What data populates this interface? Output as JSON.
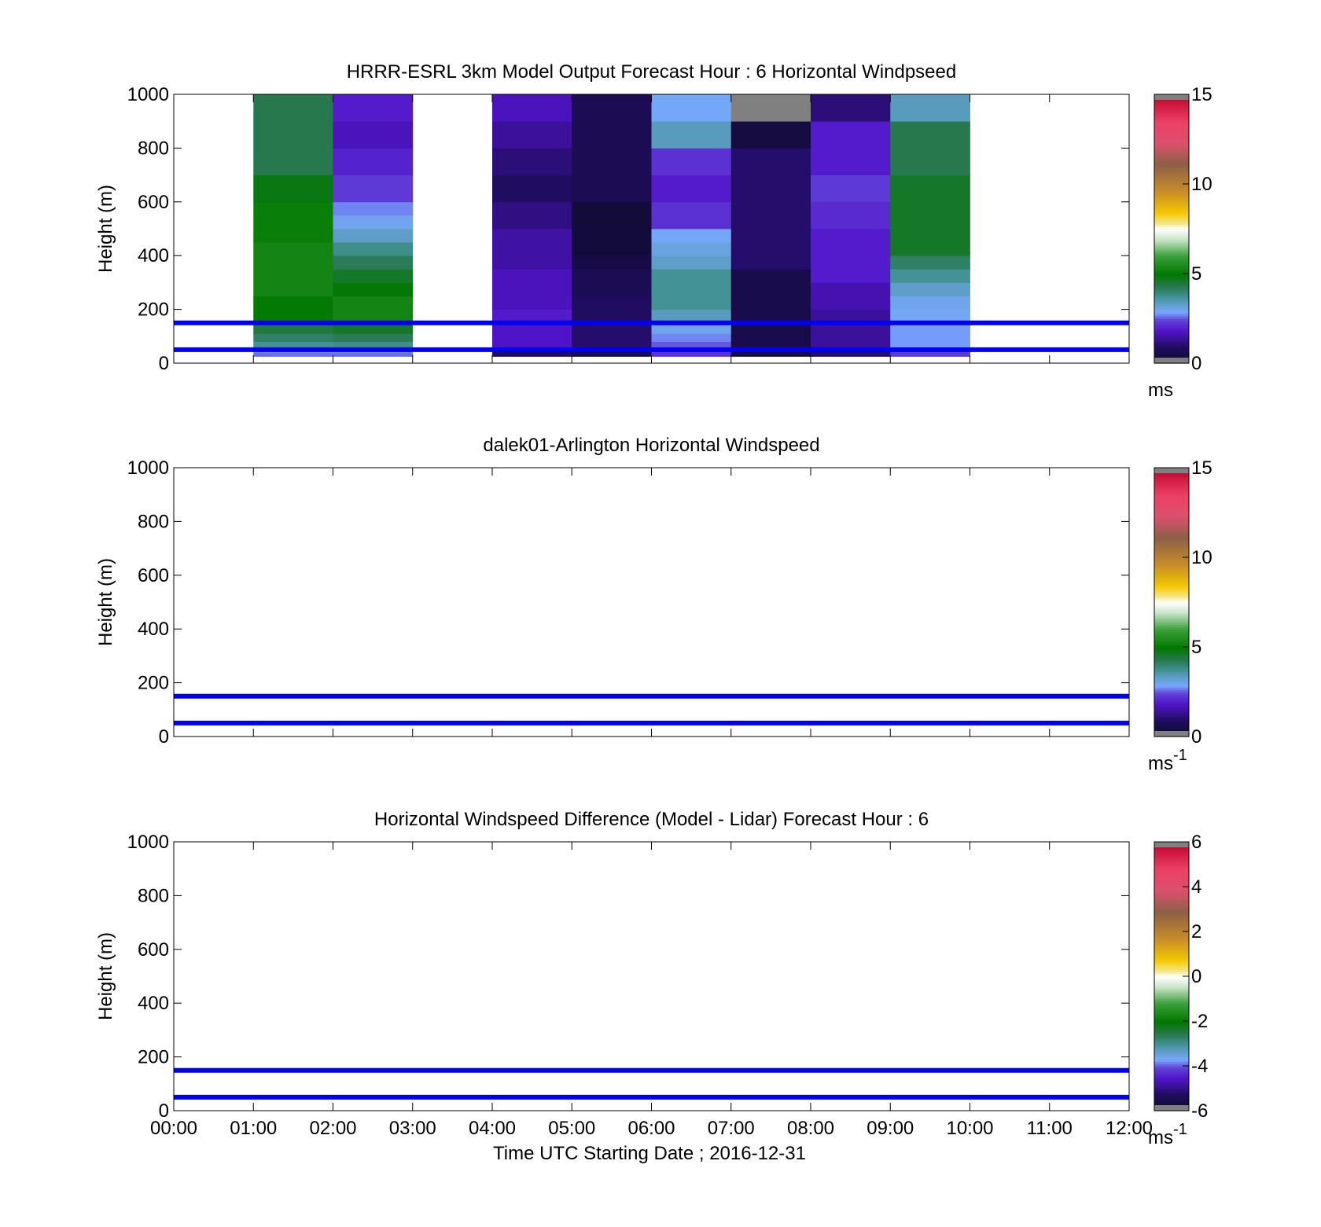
{
  "chart_data": [
    {
      "type": "heatmap",
      "title": "HRRR-ESRL 3km Model Output   Forecast Hour : 6 Horizontal Windpseed",
      "xlabel": "",
      "ylabel": "Height (m)",
      "xlim": [
        0,
        12
      ],
      "ylim": [
        0,
        1000
      ],
      "x_ticks": [
        "00:00",
        "01:00",
        "02:00",
        "03:00",
        "04:00",
        "05:00",
        "06:00",
        "07:00",
        "08:00",
        "09:00",
        "10:00",
        "11:00",
        "12:00"
      ],
      "y_ticks": [
        0,
        200,
        400,
        600,
        800,
        1000
      ],
      "reference_lines_m": [
        50,
        150
      ],
      "colorbar": {
        "min": 0,
        "max": 15,
        "ticks": [
          0,
          5,
          10,
          15
        ],
        "unit": "ms",
        "unit_sup": ""
      },
      "columns": [
        {
          "x0": 1,
          "x1": 2,
          "cells": [
            {
              "y0": 25,
              "y1": 40,
              "v": 2.6
            },
            {
              "y0": 40,
              "y1": 60,
              "v": 3.2
            },
            {
              "y0": 60,
              "y1": 80,
              "v": 3.7
            },
            {
              "y0": 80,
              "y1": 110,
              "v": 4.1
            },
            {
              "y0": 110,
              "y1": 150,
              "v": 4.4
            },
            {
              "y0": 150,
              "y1": 250,
              "v": 5.0
            },
            {
              "y0": 250,
              "y1": 450,
              "v": 5.3
            },
            {
              "y0": 450,
              "y1": 600,
              "v": 5.1
            },
            {
              "y0": 600,
              "y1": 700,
              "v": 4.8
            },
            {
              "y0": 700,
              "y1": 1000,
              "v": 4.3
            }
          ]
        },
        {
          "x0": 2,
          "x1": 3,
          "cells": [
            {
              "y0": 25,
              "y1": 40,
              "v": 2.6
            },
            {
              "y0": 40,
              "y1": 60,
              "v": 3.3
            },
            {
              "y0": 60,
              "y1": 80,
              "v": 3.8
            },
            {
              "y0": 80,
              "y1": 110,
              "v": 4.2
            },
            {
              "y0": 110,
              "y1": 150,
              "v": 4.6
            },
            {
              "y0": 150,
              "y1": 250,
              "v": 5.3
            },
            {
              "y0": 250,
              "y1": 300,
              "v": 4.9
            },
            {
              "y0": 300,
              "y1": 350,
              "v": 4.6
            },
            {
              "y0": 350,
              "y1": 400,
              "v": 4.2
            },
            {
              "y0": 400,
              "y1": 450,
              "v": 3.8
            },
            {
              "y0": 450,
              "y1": 500,
              "v": 3.3
            },
            {
              "y0": 500,
              "y1": 550,
              "v": 3.0
            },
            {
              "y0": 550,
              "y1": 600,
              "v": 2.7
            },
            {
              "y0": 600,
              "y1": 700,
              "v": 2.3
            },
            {
              "y0": 700,
              "y1": 800,
              "v": 2.0
            },
            {
              "y0": 800,
              "y1": 900,
              "v": 1.7
            },
            {
              "y0": 900,
              "y1": 1000,
              "v": 1.9
            }
          ]
        },
        {
          "x0": 4,
          "x1": 5,
          "cells": [
            {
              "y0": 25,
              "y1": 50,
              "v": 0.9
            },
            {
              "y0": 50,
              "y1": 150,
              "v": 1.8
            },
            {
              "y0": 150,
              "y1": 200,
              "v": 1.9
            },
            {
              "y0": 200,
              "y1": 350,
              "v": 1.7
            },
            {
              "y0": 350,
              "y1": 500,
              "v": 1.5
            },
            {
              "y0": 500,
              "y1": 600,
              "v": 1.2
            },
            {
              "y0": 600,
              "y1": 700,
              "v": 0.9
            },
            {
              "y0": 700,
              "y1": 800,
              "v": 1.1
            },
            {
              "y0": 800,
              "y1": 900,
              "v": 1.4
            },
            {
              "y0": 900,
              "y1": 1000,
              "v": 1.7
            }
          ]
        },
        {
          "x0": 5,
          "x1": 6,
          "cells": [
            {
              "y0": 25,
              "y1": 50,
              "v": 0.6
            },
            {
              "y0": 50,
              "y1": 150,
              "v": 1.0
            },
            {
              "y0": 150,
              "y1": 250,
              "v": 0.9
            },
            {
              "y0": 250,
              "y1": 350,
              "v": 0.7
            },
            {
              "y0": 350,
              "y1": 400,
              "v": 0.5
            },
            {
              "y0": 400,
              "y1": 600,
              "v": 0.3
            },
            {
              "y0": 600,
              "y1": 1000,
              "v": 0.7
            }
          ]
        },
        {
          "x0": 6,
          "x1": 7,
          "cells": [
            {
              "y0": 25,
              "y1": 50,
              "v": 2.2
            },
            {
              "y0": 50,
              "y1": 80,
              "v": 2.5
            },
            {
              "y0": 80,
              "y1": 110,
              "v": 2.7
            },
            {
              "y0": 110,
              "y1": 150,
              "v": 3.0
            },
            {
              "y0": 150,
              "y1": 200,
              "v": 3.4
            },
            {
              "y0": 200,
              "y1": 350,
              "v": 3.7
            },
            {
              "y0": 350,
              "y1": 400,
              "v": 3.3
            },
            {
              "y0": 400,
              "y1": 450,
              "v": 3.1
            },
            {
              "y0": 450,
              "y1": 500,
              "v": 2.9
            },
            {
              "y0": 500,
              "y1": 600,
              "v": 2.2
            },
            {
              "y0": 600,
              "y1": 700,
              "v": 1.9
            },
            {
              "y0": 700,
              "y1": 800,
              "v": 2.2
            },
            {
              "y0": 800,
              "y1": 900,
              "v": 3.4
            },
            {
              "y0": 900,
              "y1": 1000,
              "v": 2.9
            }
          ]
        },
        {
          "x0": 7,
          "x1": 8,
          "cells": [
            {
              "y0": 25,
              "y1": 50,
              "v": 0.4
            },
            {
              "y0": 50,
              "y1": 350,
              "v": 0.6
            },
            {
              "y0": 350,
              "y1": 800,
              "v": 1.0
            },
            {
              "y0": 800,
              "y1": 900,
              "v": 0.4
            },
            {
              "y0": 900,
              "y1": 1000,
              "v": 16
            }
          ]
        },
        {
          "x0": 8,
          "x1": 9,
          "cells": [
            {
              "y0": 25,
              "y1": 50,
              "v": 1.0
            },
            {
              "y0": 50,
              "y1": 200,
              "v": 1.4
            },
            {
              "y0": 200,
              "y1": 300,
              "v": 1.6
            },
            {
              "y0": 300,
              "y1": 500,
              "v": 1.9
            },
            {
              "y0": 500,
              "y1": 600,
              "v": 2.1
            },
            {
              "y0": 600,
              "y1": 700,
              "v": 2.3
            },
            {
              "y0": 700,
              "y1": 900,
              "v": 1.9
            },
            {
              "y0": 900,
              "y1": 1000,
              "v": 1.1
            }
          ]
        },
        {
          "x0": 9,
          "x1": 10,
          "cells": [
            {
              "y0": 25,
              "y1": 50,
              "v": 2.3
            },
            {
              "y0": 50,
              "y1": 150,
              "v": 2.8
            },
            {
              "y0": 150,
              "y1": 200,
              "v": 2.9
            },
            {
              "y0": 200,
              "y1": 250,
              "v": 3.0
            },
            {
              "y0": 250,
              "y1": 300,
              "v": 3.3
            },
            {
              "y0": 300,
              "y1": 350,
              "v": 3.7
            },
            {
              "y0": 350,
              "y1": 400,
              "v": 4.1
            },
            {
              "y0": 400,
              "y1": 700,
              "v": 4.6
            },
            {
              "y0": 700,
              "y1": 900,
              "v": 4.3
            },
            {
              "y0": 900,
              "y1": 1000,
              "v": 3.4
            }
          ]
        }
      ]
    },
    {
      "type": "heatmap",
      "title": "dalek01-Arlington  Horizontal Windspeed",
      "xlabel": "",
      "ylabel": "Height (m)",
      "xlim": [
        0,
        12
      ],
      "ylim": [
        0,
        1000
      ],
      "x_ticks": [
        "00:00",
        "01:00",
        "02:00",
        "03:00",
        "04:00",
        "05:00",
        "06:00",
        "07:00",
        "08:00",
        "09:00",
        "10:00",
        "11:00",
        "12:00"
      ],
      "y_ticks": [
        0,
        200,
        400,
        600,
        800,
        1000
      ],
      "reference_lines_m": [
        50,
        150
      ],
      "colorbar": {
        "min": 0,
        "max": 15,
        "ticks": [
          0,
          5,
          10,
          15
        ],
        "unit": "ms",
        "unit_sup": "-1"
      },
      "columns": []
    },
    {
      "type": "heatmap",
      "title": "Horizontal Windspeed Difference (Model - Lidar) Forecast Hour : 6",
      "xlabel": "Time UTC  Starting Date ; 2016-12-31",
      "ylabel": "Height (m)",
      "xlim": [
        0,
        12
      ],
      "ylim": [
        0,
        1000
      ],
      "x_ticks": [
        "00:00",
        "01:00",
        "02:00",
        "03:00",
        "04:00",
        "05:00",
        "06:00",
        "07:00",
        "08:00",
        "09:00",
        "10:00",
        "11:00",
        "12:00"
      ],
      "y_ticks": [
        0,
        200,
        400,
        600,
        800,
        1000
      ],
      "reference_lines_m": [
        50,
        150
      ],
      "colorbar": {
        "min": -6,
        "max": 6,
        "ticks": [
          -6,
          -4,
          -2,
          0,
          2,
          4,
          6
        ],
        "unit": "ms",
        "unit_sup": "-1"
      },
      "columns": []
    }
  ]
}
